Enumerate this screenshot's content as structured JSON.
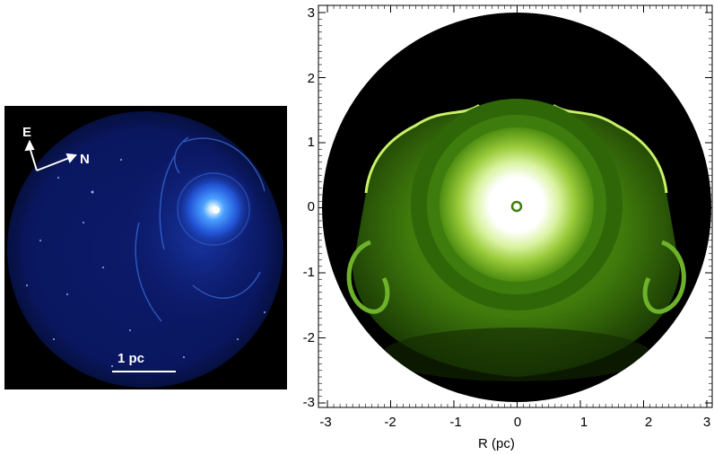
{
  "left_panel": {
    "compass": {
      "east_label": "E",
      "north_label": "N"
    },
    "scale_bar": {
      "label": "1 pc"
    }
  },
  "right_panel": {
    "x_axis": {
      "title": "R (pc)",
      "ticks": [
        "-3",
        "-2",
        "-1",
        "0",
        "1",
        "2",
        "3"
      ],
      "range": [
        -3,
        3
      ]
    },
    "y_axis": {
      "ticks": [
        "3",
        "2",
        "1",
        "0",
        "-1",
        "-2",
        "-3"
      ],
      "range": [
        -3,
        3
      ]
    }
  },
  "colors": {
    "obs_background": "#000000",
    "obs_nebula": "#3a7bff",
    "sim_shell": "#3b7a0a",
    "sim_core": "#ffffff"
  }
}
